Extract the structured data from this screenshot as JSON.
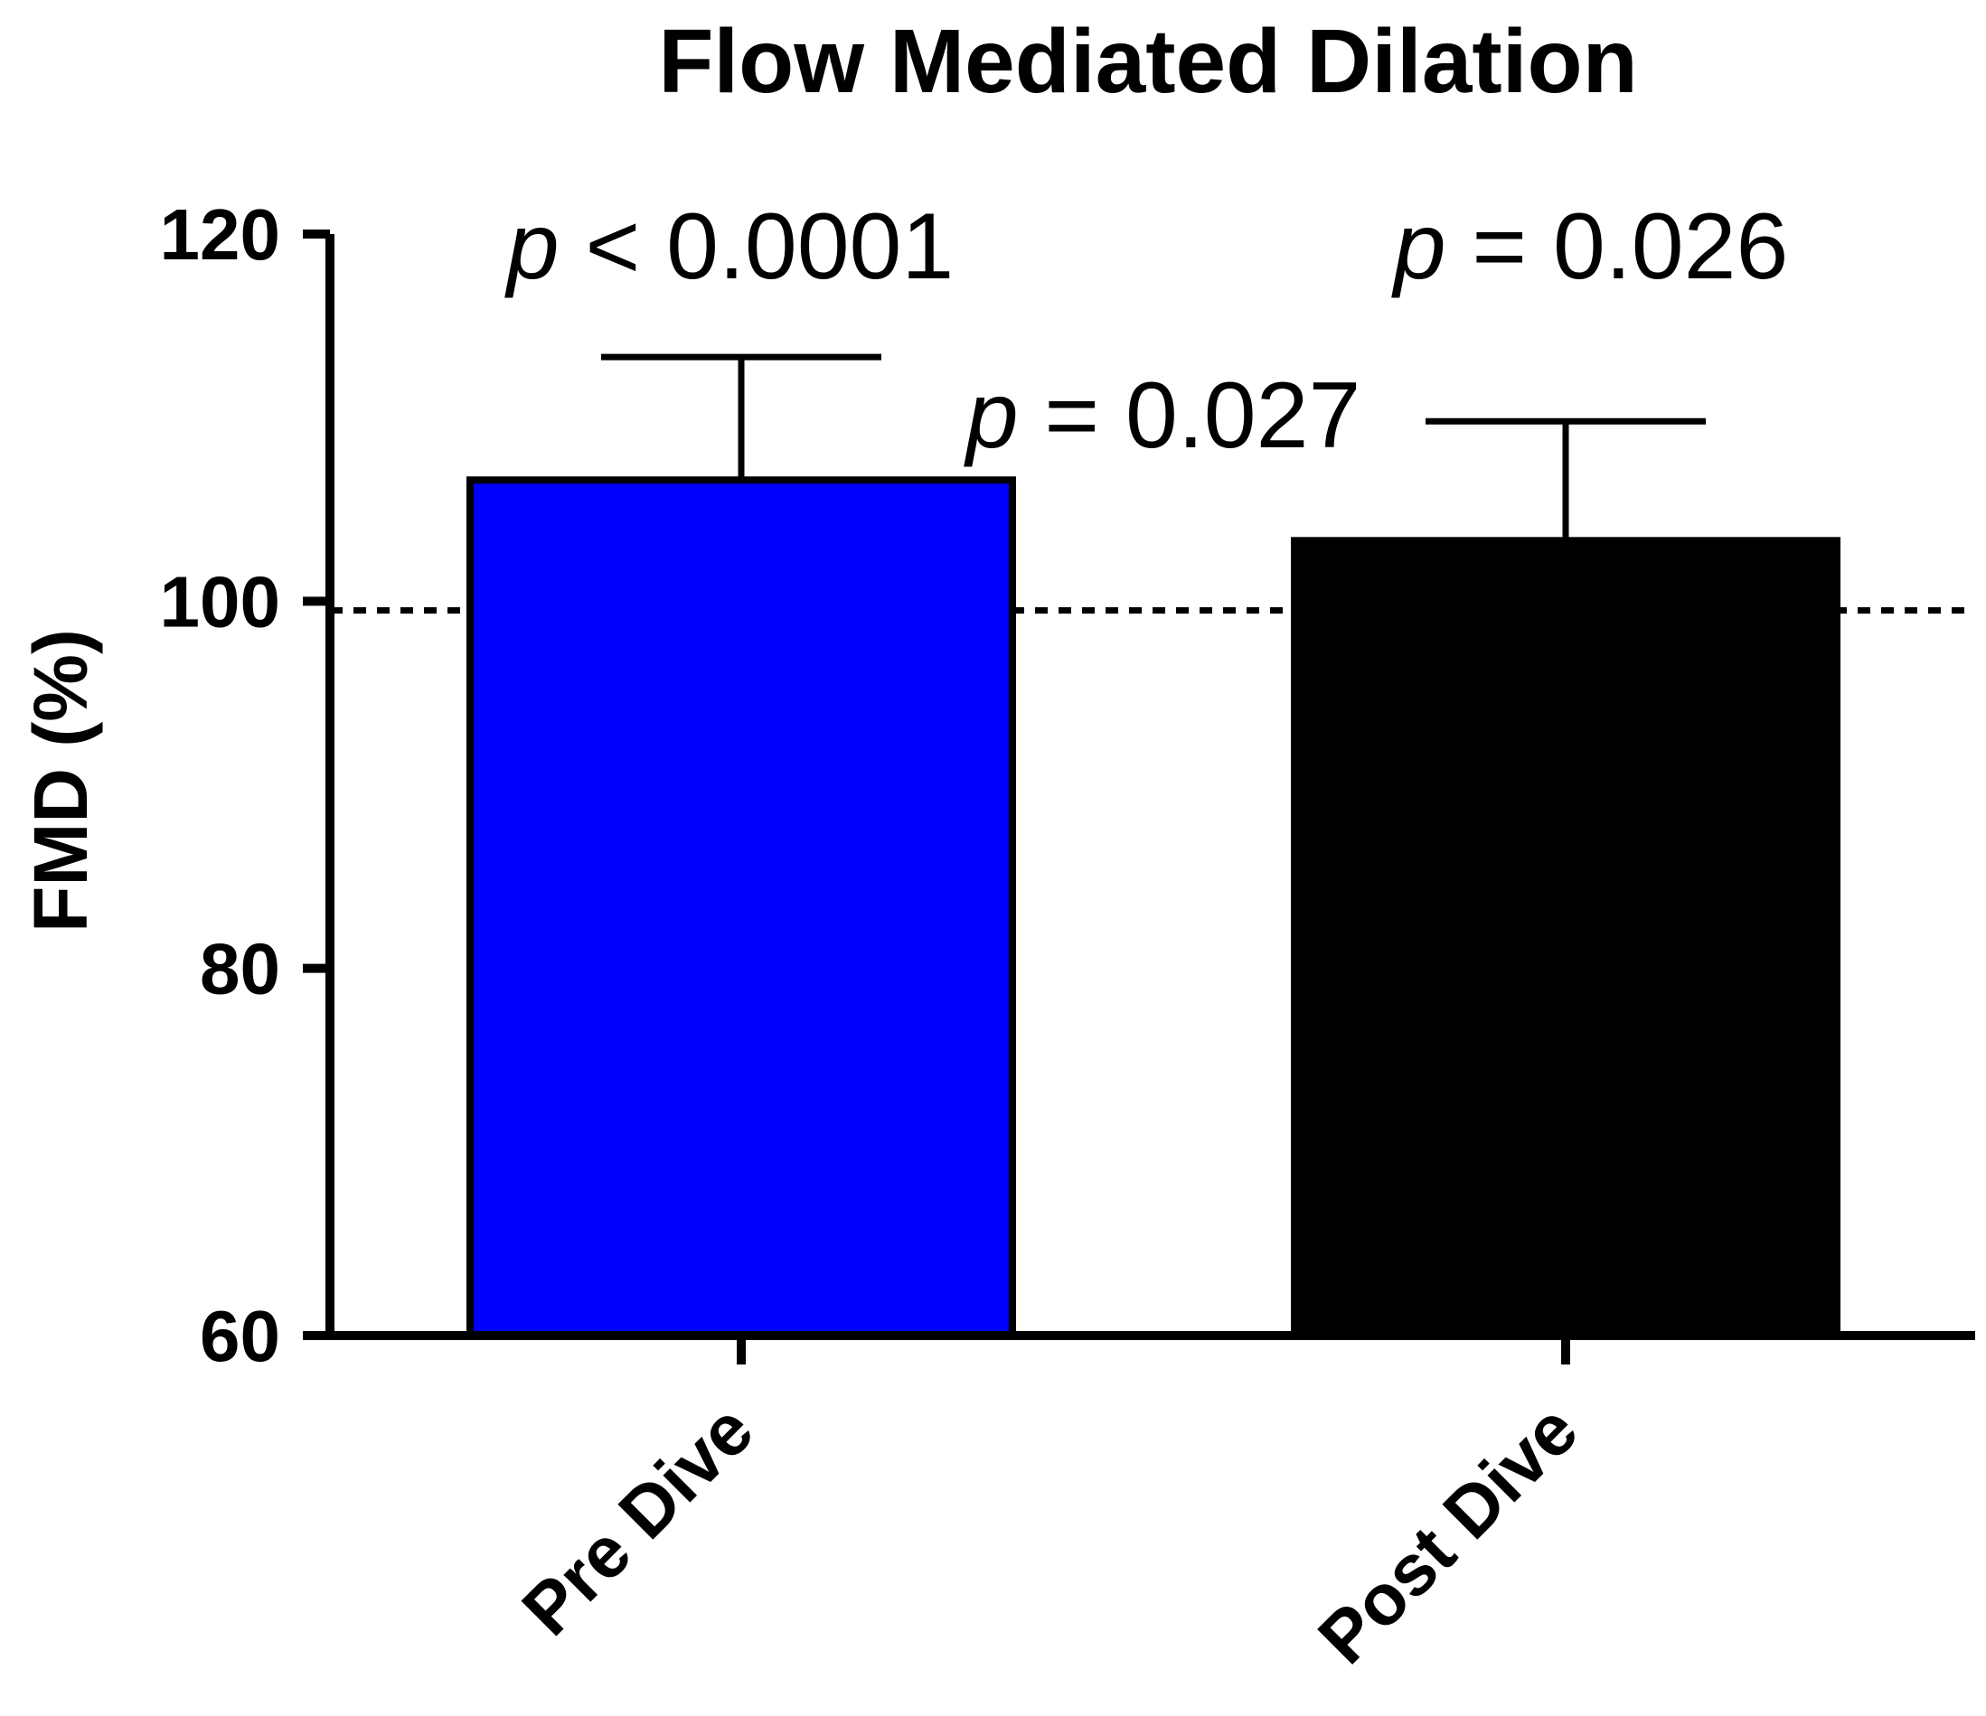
{
  "chart_data": {
    "type": "bar",
    "title": "Flow Mediated Dilation",
    "xlabel": "",
    "ylabel": "FMD (%)",
    "ylim": [
      60,
      120
    ],
    "yticks": [
      60,
      80,
      100,
      120
    ],
    "categories": [
      "Pre Dive",
      "Post Dive"
    ],
    "values": [
      106.6,
      103.3
    ],
    "error_upper": [
      113.3,
      109.8
    ],
    "bar_colors": [
      "#0000ff",
      "#000000"
    ],
    "reference_line": {
      "value": 99.5,
      "style": "dotted"
    },
    "annotations": [
      {
        "symbol": "p",
        "text": " < 0.0001",
        "anchor": "Pre Dive"
      },
      {
        "symbol": "p",
        "text": " = 0.027",
        "anchor": "between"
      },
      {
        "symbol": "p",
        "text": " = 0.026",
        "anchor": "Post Dive"
      }
    ],
    "grid": false,
    "legend": "none"
  }
}
